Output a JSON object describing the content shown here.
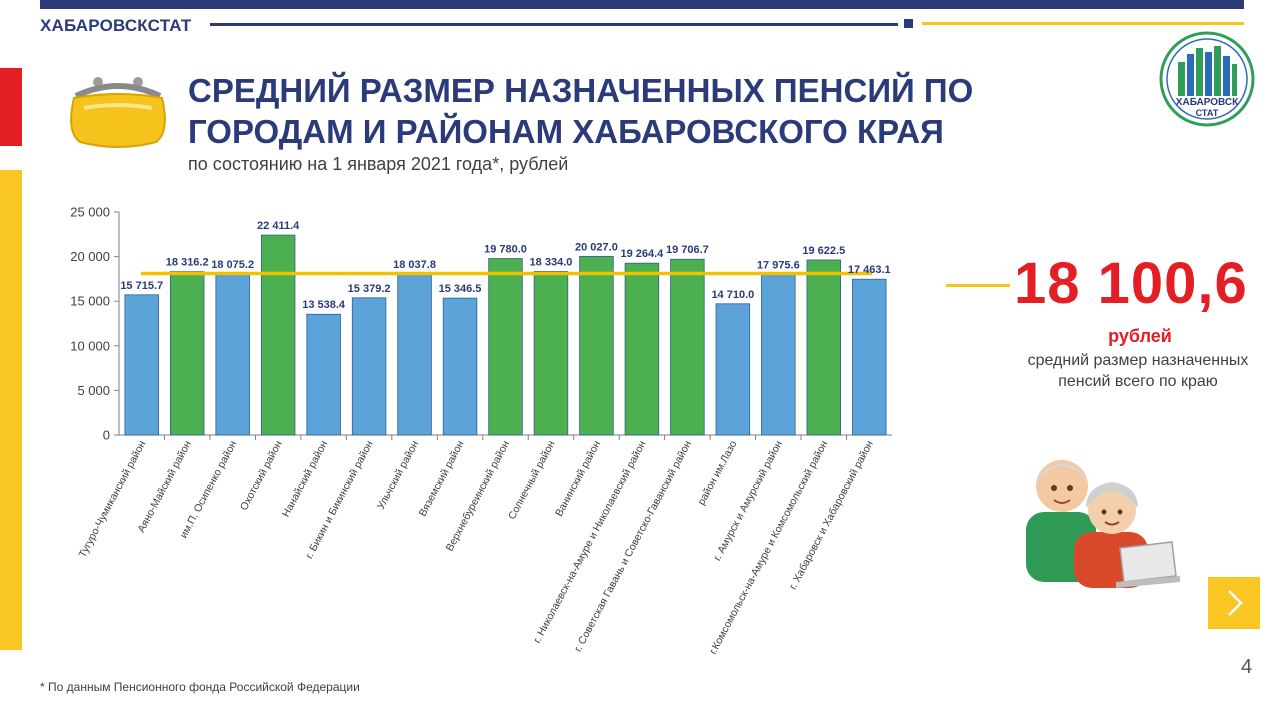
{
  "header": {
    "brand": "ХАБАРОВСКСТАТ"
  },
  "logo": {
    "line1": "ХАБАРОВСК",
    "line2": "СТАТ"
  },
  "title_line1": "СРЕДНИЙ РАЗМЕР НАЗНАЧЕННЫХ ПЕНСИЙ ПО",
  "title_line2": "ГОРОДАМ И РАЙОНАМ ХАБАРОВСКОГО КРАЯ",
  "subtitle": "по состоянию на 1 января 2021 года*, рублей",
  "summary": {
    "value": "18 100,6",
    "unit": "рублей",
    "description": "средний размер назначенных пенсий всего по краю"
  },
  "footnote": "* По данным Пенсионного фонда Российской Федерации",
  "page_number": "4",
  "icons": {
    "purse": "purse-icon",
    "elderly_couple": "elderly-couple-illustration",
    "next": "chevron-right-icon",
    "logo": "khabarovskstat-logo"
  },
  "colors": {
    "navy": "#2b3a78",
    "red": "#e31e24",
    "yellow": "#f5c518",
    "bar_blue": "#5ba3d9",
    "bar_green": "#4caf50",
    "average_line": "#f2c200"
  },
  "chart_data": {
    "type": "bar",
    "categories": [
      "Тугуро-Чумиканский район",
      "Аяно-Майский район",
      "им.П. Осипенко район",
      "Охотский район",
      "Нанайский район",
      "г. Бикин и Бикинский район",
      "Ульчский район",
      "Вяземский район",
      "Верхнебуреинский район",
      "Солнечный район",
      "Ванинский район",
      "г. Николаевск-на-Амуре и Николаевский район",
      "г. Советская Гавань и Советско-Гаванский район",
      "район им.Лазо",
      "г. Амурск и Амурский район",
      "г.Комсомольск-на-Амуре и Комсомольский район",
      "г. Хабаровск и Хабаровский район"
    ],
    "values": [
      15715.7,
      18316.2,
      18075.2,
      22411.4,
      13538.4,
      15379.2,
      18037.8,
      15346.5,
      19780.0,
      18334.0,
      20027.0,
      19264.4,
      19706.7,
      14710.0,
      17975.6,
      19622.5,
      17463.1
    ],
    "value_labels": [
      "15 715.7",
      "18 316.2",
      "18 075.2",
      "22 411.4",
      "13 538.4",
      "15 379.2",
      "18 037.8",
      "15 346.5",
      "19 780.0",
      "18 334.0",
      "20 027.0",
      "19 264.4",
      "19 706.7",
      "14 710.0",
      "17 975.6",
      "19 622.5",
      "17 463.1"
    ],
    "ytick_values": [
      0,
      5000,
      10000,
      15000,
      20000,
      25000
    ],
    "ytick_labels": [
      "0",
      "5 000",
      "10 000",
      "15 000",
      "20 000",
      "25 000"
    ],
    "ylim": [
      0,
      25000
    ],
    "average": 18100.6,
    "bar_colors_by_relation_to_average": {
      "above": "#4caf50",
      "below": "#5ba3d9"
    },
    "grid": false,
    "legend": "none"
  }
}
